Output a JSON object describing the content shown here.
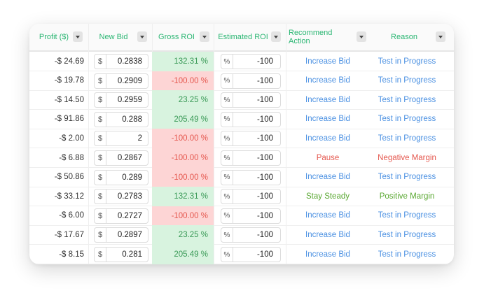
{
  "colors": {
    "header_text": "#2bb673",
    "positive_bg": "#d8f3df",
    "positive_text": "#3a9a57",
    "negative_bg": "#fdd5d5",
    "negative_text": "#e5584f",
    "action_blue": "#4a90e2",
    "pause_red": "#e5584f",
    "steady_green": "#5aa832"
  },
  "columns": [
    {
      "label": "Profit ($)",
      "menu_icon": "dropdown-icon"
    },
    {
      "label": "New Bid",
      "menu_icon": "dropdown-icon"
    },
    {
      "label": "Gross ROI",
      "menu_icon": "dropdown-icon"
    },
    {
      "label": "Estimated ROI",
      "menu_icon": "dropdown-icon"
    },
    {
      "label": "Recommend Action",
      "menu_icon": "dropdown-icon"
    },
    {
      "label": "Reason",
      "menu_icon": "dropdown-icon"
    }
  ],
  "currency_prefix": "$",
  "percent_prefix": "%",
  "rows": [
    {
      "profit": "-$ 24.69",
      "bid": "0.2838",
      "gross": "132.31 %",
      "gross_status": "positive",
      "roi": "-100",
      "action": "Increase Bid",
      "action_kind": "increase",
      "reason": "Test in Progress",
      "reason_kind": "test"
    },
    {
      "profit": "-$ 19.78",
      "bid": "0.2909",
      "gross": "-100.00 %",
      "gross_status": "negative",
      "roi": "-100",
      "action": "Increase Bid",
      "action_kind": "increase",
      "reason": "Test in Progress",
      "reason_kind": "test"
    },
    {
      "profit": "-$ 14.50",
      "bid": "0.2959",
      "gross": "23.25 %",
      "gross_status": "positive",
      "roi": "-100",
      "action": "Increase Bid",
      "action_kind": "increase",
      "reason": "Test in Progress",
      "reason_kind": "test"
    },
    {
      "profit": "-$ 91.86",
      "bid": "0.288",
      "gross": "205.49 %",
      "gross_status": "positive",
      "roi": "-100",
      "action": "Increase Bid",
      "action_kind": "increase",
      "reason": "Test in Progress",
      "reason_kind": "test"
    },
    {
      "profit": "-$ 2.00",
      "bid": "2",
      "gross": "-100.00 %",
      "gross_status": "negative",
      "roi": "-100",
      "action": "Increase Bid",
      "action_kind": "increase",
      "reason": "Test in Progress",
      "reason_kind": "test"
    },
    {
      "profit": "-$ 6.88",
      "bid": "0.2867",
      "gross": "-100.00 %",
      "gross_status": "negative",
      "roi": "-100",
      "action": "Pause",
      "action_kind": "pause",
      "reason": "Negative Margin",
      "reason_kind": "negative"
    },
    {
      "profit": "-$ 50.86",
      "bid": "0.289",
      "gross": "-100.00 %",
      "gross_status": "negative",
      "roi": "-100",
      "action": "Increase Bid",
      "action_kind": "increase",
      "reason": "Test in Progress",
      "reason_kind": "test"
    },
    {
      "profit": "-$ 33.12",
      "bid": "0.2783",
      "gross": "132.31 %",
      "gross_status": "positive",
      "roi": "-100",
      "action": "Stay Steady",
      "action_kind": "steady",
      "reason": "Positive Margin",
      "reason_kind": "positive"
    },
    {
      "profit": "-$ 6.00",
      "bid": "0.2727",
      "gross": "-100.00 %",
      "gross_status": "negative",
      "roi": "-100",
      "action": "Increase Bid",
      "action_kind": "increase",
      "reason": "Test in Progress",
      "reason_kind": "test"
    },
    {
      "profit": "-$ 17.67",
      "bid": "0.2897",
      "gross": "23.25 %",
      "gross_status": "positive",
      "roi": "-100",
      "action": "Increase Bid",
      "action_kind": "increase",
      "reason": "Test in Progress",
      "reason_kind": "test"
    },
    {
      "profit": "-$ 8.15",
      "bid": "0.281",
      "gross": "205.49 %",
      "gross_status": "positive",
      "roi": "-100",
      "action": "Increase Bid",
      "action_kind": "increase",
      "reason": "Test in Progress",
      "reason_kind": "test"
    }
  ]
}
